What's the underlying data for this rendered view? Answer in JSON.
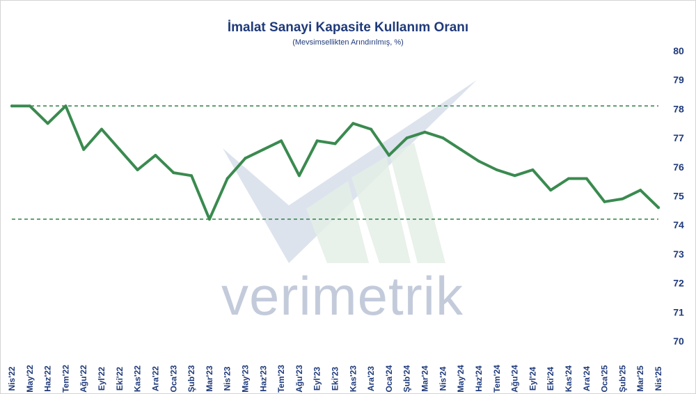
{
  "chart_data": {
    "type": "line",
    "title": "İmalat Sanayi Kapasite Kullanım Oranı",
    "subtitle": "(Mevsimsellikten Arındırılmış, %)",
    "xlabel": "",
    "ylabel": "",
    "ylim": [
      70,
      80
    ],
    "y_ticks": [
      "70",
      "71",
      "72",
      "73",
      "74",
      "75",
      "76",
      "77",
      "78",
      "79",
      "80"
    ],
    "y_axis_side": "right",
    "grid": false,
    "legend": "none",
    "categories": [
      "Nis'22",
      "May'22",
      "Haz'22",
      "Tem'22",
      "Ağu'22",
      "Eyl'22",
      "Eki'22",
      "Kas'22",
      "Ara'22",
      "Oca'23",
      "Şub'23",
      "Mar'23",
      "Nis'23",
      "May'23",
      "Haz'23",
      "Tem'23",
      "Ağu'23",
      "Eyl'23",
      "Eki'23",
      "Kas'23",
      "Ara'23",
      "Oca'24",
      "Şub'24",
      "Mar'24",
      "Nis'24",
      "May'24",
      "Haz'24",
      "Tem'24",
      "Ağu'24",
      "Eyl'24",
      "Eki'24",
      "Kas'24",
      "Ara'24",
      "Oca'25",
      "Şub'25",
      "Mar'25",
      "Nis'25"
    ],
    "series": [
      {
        "values": [
          78.1,
          78.1,
          77.5,
          78.1,
          76.6,
          77.3,
          76.6,
          75.9,
          76.4,
          75.8,
          75.7,
          74.2,
          75.6,
          76.3,
          76.6,
          76.9,
          75.7,
          76.9,
          76.8,
          77.5,
          77.3,
          76.4,
          77.0,
          77.2,
          77.0,
          76.6,
          76.2,
          75.9,
          75.7,
          75.9,
          75.2,
          75.6,
          75.6,
          74.8,
          74.9,
          75.2,
          74.6
        ],
        "color": "#3a8a4f"
      }
    ],
    "reference_lines": [
      {
        "value": 78.1,
        "style": "dashed",
        "color": "#3a8a4f"
      },
      {
        "value": 74.2,
        "style": "dashed",
        "color": "#3a8a4f"
      }
    ]
  },
  "watermark": {
    "text": "verimetrik"
  }
}
